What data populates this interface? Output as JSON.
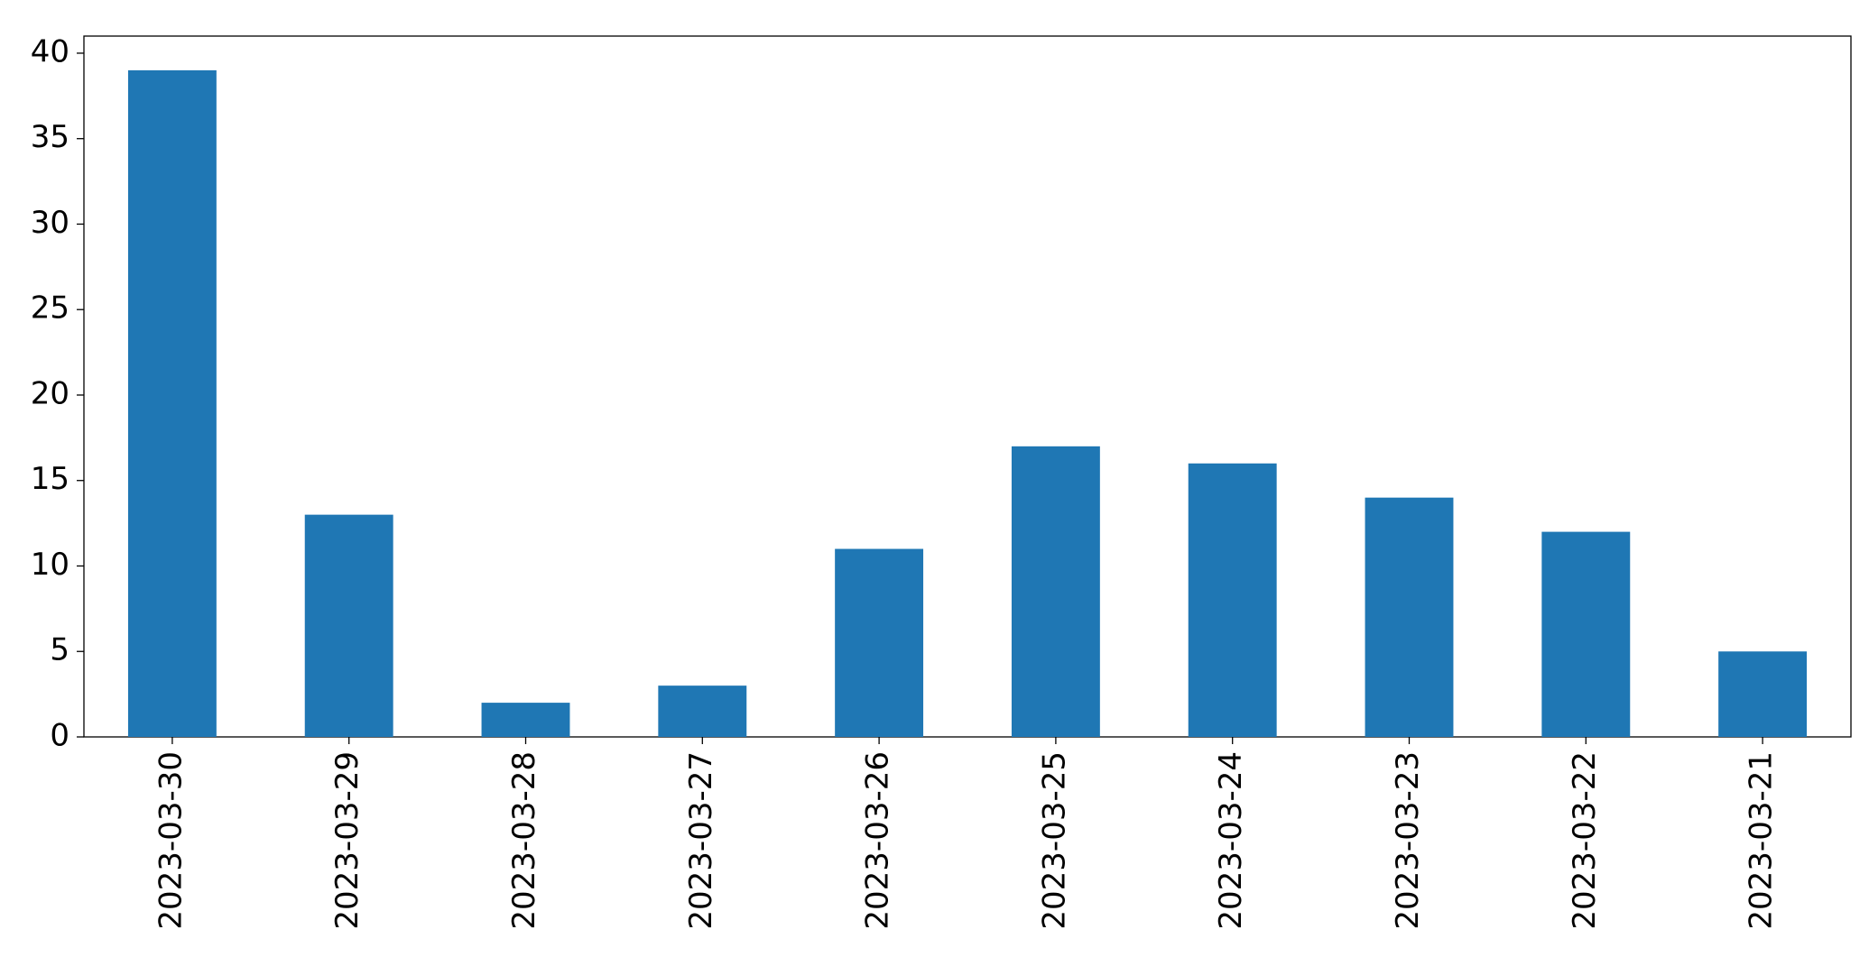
{
  "chart_data": {
    "type": "bar",
    "categories": [
      "2023-03-30",
      "2023-03-29",
      "2023-03-28",
      "2023-03-27",
      "2023-03-26",
      "2023-03-25",
      "2023-03-24",
      "2023-03-23",
      "2023-03-22",
      "2023-03-21"
    ],
    "values": [
      39,
      13,
      2,
      3,
      11,
      17,
      16,
      14,
      12,
      5
    ],
    "color": "#1f77b4",
    "ylim": [
      0,
      41
    ],
    "yticks": [
      0,
      5,
      10,
      15,
      20,
      25,
      30,
      35,
      40
    ],
    "grid": false
  }
}
